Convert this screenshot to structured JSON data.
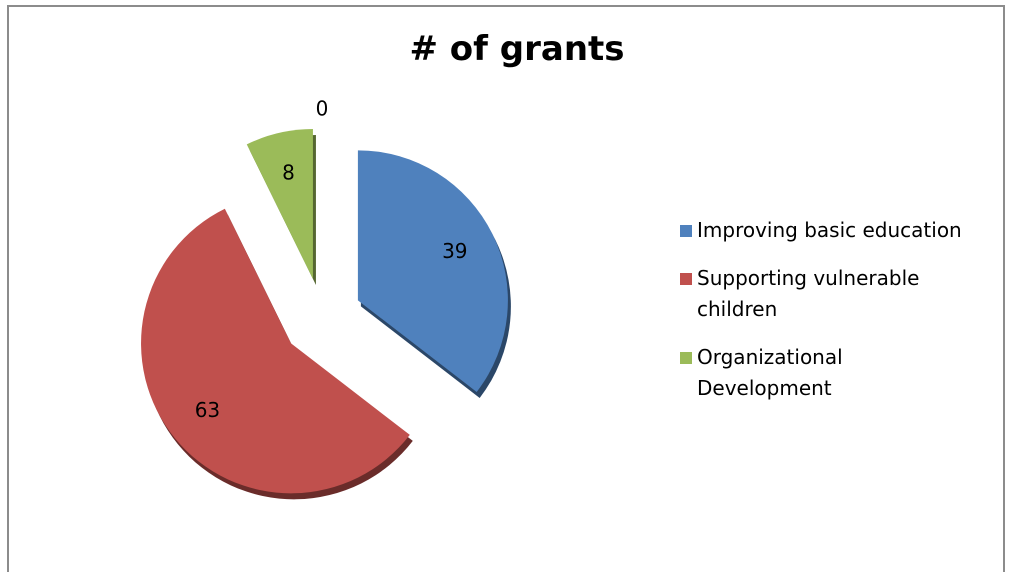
{
  "chart_data": {
    "type": "pie",
    "title": "# of grants",
    "categories": [
      "Improving basic education",
      "Supporting vulnerable children",
      "Organizational Development",
      null
    ],
    "values": [
      39,
      63,
      8,
      0
    ],
    "colors": [
      "#4f81bd",
      "#c0504d",
      "#9bbb59",
      "#8064a2"
    ],
    "legend": "right"
  }
}
